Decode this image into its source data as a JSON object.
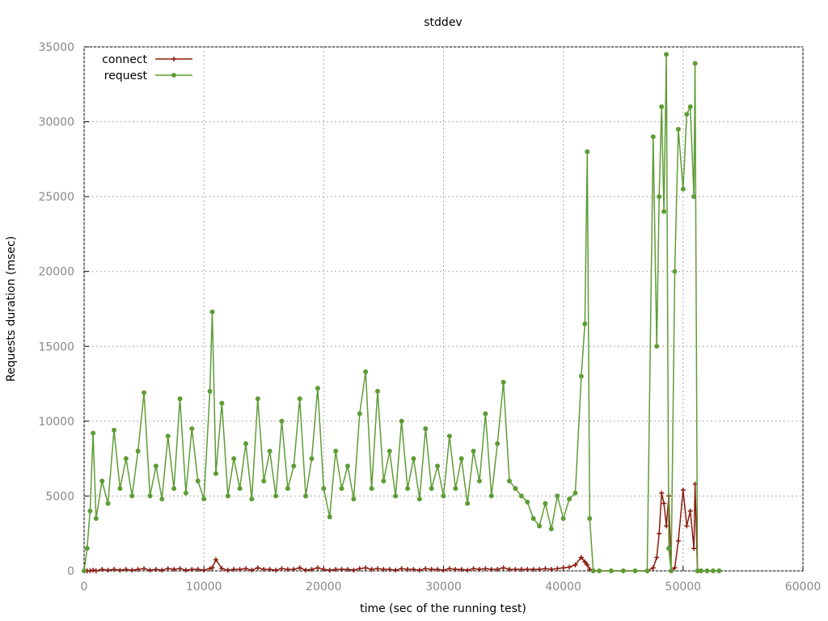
{
  "chart_data": {
    "type": "line",
    "title": "stddev",
    "x_label": "time (sec of the running test)",
    "y_label": "Requests duration (msec)",
    "xlim": [
      0,
      60000
    ],
    "ylim": [
      0,
      35000
    ],
    "xticks": [
      0,
      10000,
      20000,
      30000,
      40000,
      50000,
      60000
    ],
    "yticks": [
      0,
      5000,
      10000,
      15000,
      20000,
      25000,
      30000,
      35000
    ],
    "grid": true,
    "legend": "top-left",
    "x": [
      0,
      250,
      500,
      750,
      1000,
      1500,
      2000,
      2500,
      3000,
      3500,
      4000,
      4500,
      5000,
      5500,
      6000,
      6500,
      7000,
      7500,
      8000,
      8500,
      9000,
      9500,
      10000,
      10500,
      10700,
      11000,
      11500,
      12000,
      12500,
      13000,
      13500,
      14000,
      14500,
      15000,
      15500,
      16000,
      16500,
      17000,
      17500,
      18000,
      18500,
      19000,
      19500,
      20000,
      20500,
      21000,
      21500,
      22000,
      22500,
      23000,
      23500,
      24000,
      24500,
      25000,
      25500,
      26000,
      26500,
      27000,
      27500,
      28000,
      28500,
      29000,
      29500,
      30000,
      30500,
      31000,
      31500,
      32000,
      32500,
      33000,
      33500,
      34000,
      34500,
      35000,
      35500,
      36000,
      36500,
      37000,
      37500,
      38000,
      38500,
      39000,
      39500,
      40000,
      40500,
      41000,
      41500,
      41800,
      42000,
      42200,
      42500,
      43000,
      44000,
      45000,
      46000,
      47000,
      47500,
      47800,
      48000,
      48200,
      48400,
      48600,
      48800,
      49000,
      49300,
      49600,
      50000,
      50300,
      50600,
      50900,
      51000,
      51200,
      51500,
      52000,
      52500,
      53000
    ],
    "series": [
      {
        "name": "connect",
        "color": "#8b1a0e",
        "marker": "plus",
        "values": [
          0,
          0,
          0,
          50,
          0,
          100,
          50,
          100,
          50,
          100,
          50,
          100,
          150,
          50,
          100,
          50,
          150,
          100,
          150,
          50,
          100,
          100,
          50,
          150,
          200,
          750,
          150,
          50,
          100,
          100,
          150,
          50,
          200,
          100,
          100,
          50,
          150,
          100,
          100,
          200,
          50,
          100,
          200,
          100,
          50,
          100,
          100,
          100,
          50,
          150,
          200,
          100,
          150,
          100,
          100,
          50,
          150,
          100,
          100,
          50,
          150,
          100,
          100,
          50,
          150,
          100,
          100,
          50,
          150,
          100,
          150,
          100,
          100,
          200,
          100,
          100,
          100,
          100,
          100,
          100,
          150,
          100,
          150,
          200,
          250,
          400,
          900,
          600,
          400,
          100,
          0,
          0,
          0,
          0,
          0,
          0,
          200,
          900,
          2500,
          5200,
          4500,
          3000,
          5000,
          0,
          200,
          2000,
          5400,
          3000,
          4000,
          1500,
          5800,
          0,
          0,
          0,
          0,
          0
        ]
      },
      {
        "name": "request",
        "color": "#5e9c36",
        "marker": "dot",
        "values": [
          0,
          1500,
          4000,
          9200,
          3500,
          6000,
          4500,
          9400,
          5500,
          7500,
          5000,
          8000,
          11900,
          5000,
          7000,
          4800,
          9000,
          5500,
          11500,
          5200,
          9500,
          6000,
          4800,
          12000,
          17300,
          6500,
          11200,
          5000,
          7500,
          5500,
          8500,
          4800,
          11500,
          6000,
          8000,
          5000,
          10000,
          5500,
          7000,
          11500,
          5000,
          7500,
          12200,
          5500,
          3600,
          8000,
          5500,
          7000,
          4800,
          10500,
          13300,
          5500,
          12000,
          6000,
          8000,
          5000,
          10000,
          5500,
          7500,
          4800,
          9500,
          5500,
          7000,
          5000,
          9000,
          5500,
          7500,
          4500,
          8000,
          6000,
          10500,
          5000,
          8500,
          12600,
          6000,
          5500,
          5000,
          4600,
          3500,
          3000,
          4500,
          2800,
          5000,
          3500,
          4800,
          5200,
          13000,
          16500,
          28000,
          3500,
          0,
          0,
          0,
          0,
          0,
          0,
          29000,
          15000,
          25000,
          31000,
          24000,
          34500,
          1500,
          0,
          20000,
          29500,
          25500,
          30500,
          31000,
          25000,
          33900,
          0,
          0,
          0,
          0,
          0
        ]
      }
    ]
  }
}
